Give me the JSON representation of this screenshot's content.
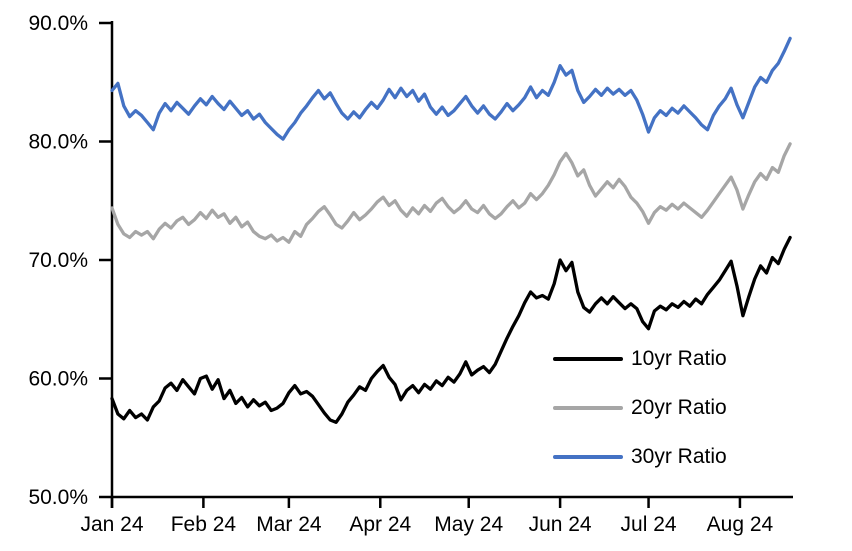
{
  "chart_data": {
    "type": "line",
    "title": "",
    "xlabel": "",
    "ylabel": "",
    "grid": false,
    "legend_position": "inside-lower-right",
    "ylim": [
      50,
      90
    ],
    "y_ticks": [
      {
        "label": "90.0%",
        "value": 90
      },
      {
        "label": "80.0%",
        "value": 80
      },
      {
        "label": "70.0%",
        "value": 70
      },
      {
        "label": "60.0%",
        "value": 60
      },
      {
        "label": "50.0%",
        "value": 50
      }
    ],
    "x_span_days": 231,
    "x_ticks": [
      {
        "label": "Jan 24",
        "day": 0
      },
      {
        "label": "Feb 24",
        "day": 31
      },
      {
        "label": "Mar 24",
        "day": 60
      },
      {
        "label": "Apr 24",
        "day": 91
      },
      {
        "label": "May 24",
        "day": 121
      },
      {
        "label": "Jun 24",
        "day": 152
      },
      {
        "label": "Jul 24",
        "day": 182
      },
      {
        "label": "Aug 24",
        "day": 213
      }
    ],
    "days": [
      0,
      2,
      4,
      6,
      8,
      10,
      12,
      14,
      16,
      18,
      20,
      22,
      24,
      26,
      28,
      30,
      32,
      34,
      36,
      38,
      40,
      42,
      44,
      46,
      48,
      50,
      52,
      54,
      56,
      58,
      60,
      62,
      64,
      66,
      68,
      70,
      72,
      74,
      76,
      78,
      80,
      82,
      84,
      86,
      88,
      90,
      92,
      94,
      96,
      98,
      100,
      102,
      104,
      106,
      108,
      110,
      112,
      114,
      116,
      118,
      120,
      122,
      124,
      126,
      128,
      130,
      132,
      134,
      136,
      138,
      140,
      142,
      144,
      146,
      148,
      150,
      152,
      154,
      156,
      158,
      160,
      162,
      164,
      166,
      168,
      170,
      172,
      174,
      176,
      178,
      180,
      182,
      184,
      186,
      188,
      190,
      192,
      194,
      196,
      198,
      200,
      202,
      204,
      206,
      208,
      210,
      212,
      214,
      216,
      218,
      220,
      222,
      224,
      226,
      228,
      230
    ],
    "series": [
      {
        "name": "10yr Ratio",
        "color": "#000000",
        "values": [
          58.3,
          57.0,
          56.6,
          57.3,
          56.7,
          57.0,
          56.5,
          57.6,
          58.1,
          59.2,
          59.6,
          59.0,
          59.9,
          59.3,
          58.7,
          60.0,
          60.2,
          59.1,
          59.9,
          58.3,
          59.0,
          57.9,
          58.4,
          57.6,
          58.2,
          57.7,
          58.0,
          57.3,
          57.5,
          57.9,
          58.8,
          59.4,
          58.7,
          58.9,
          58.5,
          57.8,
          57.1,
          56.5,
          56.3,
          57.0,
          58.0,
          58.6,
          59.3,
          59.0,
          60.0,
          60.6,
          61.1,
          60.1,
          59.5,
          58.2,
          59.0,
          59.4,
          58.8,
          59.5,
          59.1,
          59.8,
          59.4,
          60.1,
          59.7,
          60.4,
          61.4,
          60.3,
          60.7,
          61.0,
          60.5,
          61.2,
          62.3,
          63.4,
          64.4,
          65.3,
          66.4,
          67.3,
          66.8,
          67.0,
          66.7,
          68.0,
          70.0,
          69.1,
          69.8,
          67.3,
          66.0,
          65.6,
          66.3,
          66.8,
          66.3,
          66.9,
          66.4,
          65.9,
          66.3,
          65.9,
          64.8,
          64.2,
          65.7,
          66.1,
          65.8,
          66.3,
          66.0,
          66.5,
          66.1,
          66.7,
          66.3,
          67.1,
          67.7,
          68.3,
          69.1,
          69.9,
          67.8,
          65.3,
          66.9,
          68.4,
          69.5,
          68.9,
          70.2,
          69.7,
          70.9,
          71.9
        ]
      },
      {
        "name": "20yr Ratio",
        "color": "#A6A6A6",
        "values": [
          74.4,
          73.0,
          72.2,
          71.9,
          72.4,
          72.1,
          72.4,
          71.8,
          72.6,
          73.1,
          72.7,
          73.3,
          73.6,
          73.0,
          73.4,
          74.0,
          73.5,
          74.2,
          73.6,
          73.9,
          73.1,
          73.6,
          72.8,
          73.2,
          72.4,
          72.0,
          71.8,
          72.1,
          71.6,
          71.9,
          71.5,
          72.4,
          72.0,
          73.0,
          73.5,
          74.1,
          74.5,
          73.8,
          73.0,
          72.7,
          73.3,
          74.0,
          73.4,
          73.8,
          74.3,
          74.9,
          75.3,
          74.6,
          75.0,
          74.2,
          73.7,
          74.4,
          73.9,
          74.6,
          74.1,
          74.8,
          75.2,
          74.5,
          74.0,
          74.4,
          75.0,
          74.3,
          74.0,
          74.6,
          73.9,
          73.5,
          73.9,
          74.5,
          75.0,
          74.4,
          74.8,
          75.6,
          75.1,
          75.6,
          76.3,
          77.2,
          78.3,
          79.0,
          78.2,
          77.1,
          77.6,
          76.3,
          75.4,
          76.0,
          76.6,
          76.1,
          76.8,
          76.2,
          75.3,
          74.8,
          74.1,
          73.1,
          74.0,
          74.5,
          74.2,
          74.7,
          74.3,
          74.8,
          74.4,
          74.0,
          73.6,
          74.2,
          74.9,
          75.6,
          76.3,
          77.0,
          75.9,
          74.3,
          75.5,
          76.6,
          77.3,
          76.8,
          77.8,
          77.4,
          78.8,
          79.8
        ]
      },
      {
        "name": "30yr Ratio",
        "color": "#4472C4",
        "values": [
          84.3,
          84.9,
          83.0,
          82.1,
          82.6,
          82.2,
          81.6,
          81.0,
          82.4,
          83.2,
          82.6,
          83.3,
          82.8,
          82.3,
          83.0,
          83.6,
          83.1,
          83.8,
          83.2,
          82.7,
          83.4,
          82.8,
          82.2,
          82.6,
          81.9,
          82.3,
          81.6,
          81.1,
          80.6,
          80.2,
          81.0,
          81.6,
          82.4,
          83.0,
          83.7,
          84.3,
          83.6,
          84.1,
          83.2,
          82.4,
          81.9,
          82.5,
          82.0,
          82.7,
          83.3,
          82.8,
          83.5,
          84.4,
          83.7,
          84.5,
          83.8,
          84.3,
          83.4,
          84.0,
          82.9,
          82.3,
          82.9,
          82.2,
          82.6,
          83.2,
          83.8,
          83.0,
          82.4,
          83.0,
          82.3,
          81.9,
          82.5,
          83.2,
          82.6,
          83.1,
          83.7,
          84.6,
          83.7,
          84.3,
          83.9,
          85.0,
          86.4,
          85.6,
          86.0,
          84.3,
          83.3,
          83.8,
          84.4,
          83.9,
          84.5,
          84.0,
          84.4,
          83.9,
          84.3,
          83.5,
          82.3,
          80.8,
          82.0,
          82.6,
          82.2,
          82.8,
          82.4,
          83.0,
          82.5,
          82.0,
          81.4,
          81.0,
          82.2,
          83.0,
          83.6,
          84.5,
          83.1,
          82.0,
          83.3,
          84.6,
          85.4,
          85.0,
          86.0,
          86.6,
          87.6,
          88.7
        ]
      }
    ]
  }
}
